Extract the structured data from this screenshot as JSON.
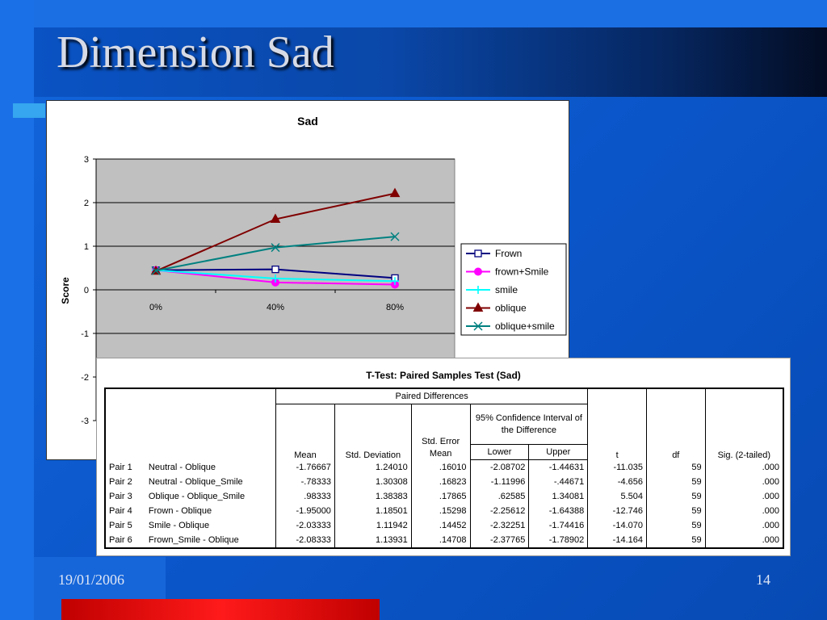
{
  "slide": {
    "title": "Dimension Sad",
    "date": "19/01/2006",
    "page": "14"
  },
  "chart_data": {
    "type": "line",
    "title": "Sad",
    "ylabel": "Score",
    "xlabel": "",
    "categories": [
      "0%",
      "40%",
      "80%"
    ],
    "ylim": [
      -3,
      3
    ],
    "yticks": [
      3,
      2,
      1,
      0,
      -1,
      -2,
      -3
    ],
    "grid": true,
    "legend": "right",
    "plot_background": "#c0c0c0",
    "series": [
      {
        "name": "Frown",
        "values": [
          0.45,
          0.47,
          0.27
        ],
        "color": "#000080",
        "marker": "square-open"
      },
      {
        "name": "frown+Smile",
        "values": [
          0.45,
          0.17,
          0.12
        ],
        "color": "#ff00ff",
        "marker": "circle"
      },
      {
        "name": "smile",
        "values": [
          0.45,
          0.26,
          0.2
        ],
        "color": "#00ffff",
        "marker": "plus"
      },
      {
        "name": "oblique",
        "values": [
          0.43,
          1.62,
          2.21
        ],
        "color": "#800000",
        "marker": "triangle"
      },
      {
        "name": "oblique+smile",
        "values": [
          0.44,
          0.97,
          1.22
        ],
        "color": "#008080",
        "marker": "x"
      }
    ]
  },
  "table": {
    "title": "T-Test: Paired Samples Test (Sad)",
    "paired_header": "Paired Differences",
    "ci_header": "95% Confidence Interval of the Difference",
    "headers": {
      "mean": "Mean",
      "std_dev": "Std. Deviation",
      "std_err": "Std. Error Mean",
      "lower": "Lower",
      "upper": "Upper",
      "t": "t",
      "df": "df",
      "sig": "Sig. (2-tailed)"
    },
    "rows": [
      {
        "pair": "Pair 1",
        "label": "Neutral - Oblique",
        "mean": "-1.76667",
        "sd": "1.24010",
        "se": ".16010",
        "lower": "-2.08702",
        "upper": "-1.44631",
        "t": "-11.035",
        "df": "59",
        "sig": ".000"
      },
      {
        "pair": "Pair 2",
        "label": "Neutral - Oblique_Smile",
        "mean": "-.78333",
        "sd": "1.30308",
        "se": ".16823",
        "lower": "-1.11996",
        "upper": "-.44671",
        "t": "-4.656",
        "df": "59",
        "sig": ".000"
      },
      {
        "pair": "Pair 3",
        "label": "Oblique - Oblique_Smile",
        "mean": ".98333",
        "sd": "1.38383",
        "se": ".17865",
        "lower": ".62585",
        "upper": "1.34081",
        "t": "5.504",
        "df": "59",
        "sig": ".000"
      },
      {
        "pair": "Pair 4",
        "label": "Frown - Oblique",
        "mean": "-1.95000",
        "sd": "1.18501",
        "se": ".15298",
        "lower": "-2.25612",
        "upper": "-1.64388",
        "t": "-12.746",
        "df": "59",
        "sig": ".000"
      },
      {
        "pair": "Pair 5",
        "label": "Smile - Oblique",
        "mean": "-2.03333",
        "sd": "1.11942",
        "se": ".14452",
        "lower": "-2.32251",
        "upper": "-1.74416",
        "t": "-14.070",
        "df": "59",
        "sig": ".000"
      },
      {
        "pair": "Pair 6",
        "label": "Frown_Smile - Oblique",
        "mean": "-2.08333",
        "sd": "1.13931",
        "se": ".14708",
        "lower": "-2.37765",
        "upper": "-1.78902",
        "t": "-14.164",
        "df": "59",
        "sig": ".000"
      }
    ]
  }
}
